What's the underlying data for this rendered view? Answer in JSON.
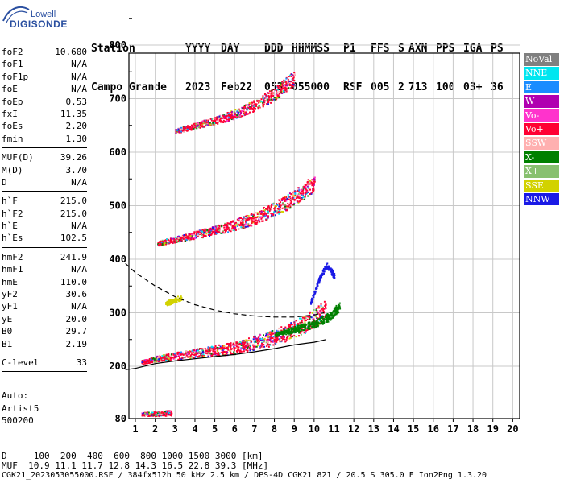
{
  "logo": {
    "top": "Lowell",
    "main": "DIGISONDE"
  },
  "header": {
    "row1": [
      "Station",
      "YYYY",
      "DAY",
      "DDD",
      "HHMMSS",
      "P1",
      "FFS",
      "S",
      "AXN",
      "PPS",
      "IGA",
      "PS"
    ],
    "row2": [
      "Campo Grande",
      "2023",
      "Feb22",
      "053",
      "055000",
      "RSF",
      "005",
      "2",
      "713",
      "100",
      "03+",
      "36"
    ]
  },
  "params": {
    "group1": [
      {
        "label": "foF2",
        "value": "10.600"
      },
      {
        "label": "foF1",
        "value": "N/A"
      },
      {
        "label": "foF1p",
        "value": "N/A"
      },
      {
        "label": "foE",
        "value": "N/A"
      },
      {
        "label": "foEp",
        "value": "0.53"
      },
      {
        "label": "fxI",
        "value": "11.35"
      },
      {
        "label": "foEs",
        "value": "2.20"
      },
      {
        "label": "fmin",
        "value": "1.30"
      }
    ],
    "group2": [
      {
        "label": "MUF(D)",
        "value": "39.26"
      },
      {
        "label": "M(D)",
        "value": "3.70"
      },
      {
        "label": "D",
        "value": "N/A"
      }
    ],
    "group3": [
      {
        "label": "h`F",
        "value": "215.0"
      },
      {
        "label": "h`F2",
        "value": "215.0"
      },
      {
        "label": "h`E",
        "value": "N/A"
      },
      {
        "label": "h`Es",
        "value": "102.5"
      }
    ],
    "group4": [
      {
        "label": "hmF2",
        "value": "241.9"
      },
      {
        "label": "hmF1",
        "value": "N/A"
      },
      {
        "label": "hmE",
        "value": "110.0"
      },
      {
        "label": "yF2",
        "value": "30.6"
      },
      {
        "label": "yF1",
        "value": "N/A"
      },
      {
        "label": "yE",
        "value": "20.0"
      },
      {
        "label": "B0",
        "value": "29.7"
      },
      {
        "label": "B1",
        "value": "2.19"
      }
    ],
    "group5": [
      {
        "label": "C-level",
        "value": "33"
      }
    ]
  },
  "auto": {
    "line1": "Auto:",
    "line2": "Artist5",
    "line3": "500200"
  },
  "legend": [
    {
      "label": "NoVal",
      "color": "#808080"
    },
    {
      "label": "NNE",
      "color": "#00e6f0"
    },
    {
      "label": "E",
      "color": "#1a8cff"
    },
    {
      "label": "W",
      "color": "#b000b0"
    },
    {
      "label": "Vo-",
      "color": "#ff33cc"
    },
    {
      "label": "Vo+",
      "color": "#ff0033"
    },
    {
      "label": "SSW",
      "color": "#ffb0b0"
    },
    {
      "label": "X-",
      "color": "#008000"
    },
    {
      "label": "X+",
      "color": "#88c070"
    },
    {
      "label": "SSE",
      "color": "#d2d200"
    },
    {
      "label": "NNW",
      "color": "#1a1ae6"
    }
  ],
  "footer": {
    "d_row": "D     100  200  400  600  800 1000 1500 3000 [km]",
    "muf_row": "MUF  10.9 11.1 11.7 12.8 14.3 16.5 22.8 39.3 [MHz]",
    "info_row": "CGK21_2023053055000.RSF / 384fx512h 50 kHz 2.5 km / DPS-4D CGK21 821 / 20.5 S 305.0 E Ion2Png 1.3.20"
  },
  "chart_data": {
    "type": "scatter",
    "title": "",
    "xlabel": "",
    "ylabel": "",
    "xlim": [
      0.5,
      20
    ],
    "ylim": [
      80,
      900
    ],
    "xticks": [
      "1",
      "2",
      "3",
      "4",
      "5",
      "6",
      "7",
      "8",
      "9",
      "10",
      "11",
      "12",
      "13",
      "14",
      "15",
      "16",
      "17",
      "18",
      "19",
      "20"
    ],
    "yticks": [
      "80",
      "200",
      "300",
      "400",
      "500",
      "600",
      "700",
      "800",
      "900"
    ],
    "grid": true,
    "legend_position": "right",
    "series": [
      {
        "color": "#ff0033",
        "traces": [
          {
            "x": [
              1.3,
              2.0,
              3.0,
              4.0,
              5.0,
              6.0,
              7.0,
              8.0,
              9.0,
              10.0,
              10.6
            ],
            "y": [
              208,
              215,
              220,
              225,
              230,
              235,
              245,
              255,
              270,
              290,
              310
            ]
          },
          {
            "x": [
              2.1,
              3.0,
              4.0,
              5.0,
              6.0,
              7.0,
              8.0,
              9.0,
              10.0
            ],
            "y": [
              430,
              438,
              446,
              455,
              465,
              478,
              495,
              515,
              545
            ]
          },
          {
            "x": [
              3.0,
              4.0,
              5.0,
              6.0,
              7.0,
              8.0,
              9.0
            ],
            "y": [
              640,
              650,
              660,
              672,
              688,
              710,
              740
            ]
          },
          {
            "x": [
              1.3,
              2.0,
              2.8
            ],
            "y": [
              92,
              92,
              94
            ]
          }
        ]
      },
      {
        "color": "#008000",
        "traces": [
          {
            "x": [
              8.0,
              9.0,
              10.0,
              10.8,
              11.2,
              11.3
            ],
            "y": [
              260,
              270,
              280,
              295,
              310,
              320
            ]
          }
        ]
      },
      {
        "color": "#1a1ae6",
        "traces": [
          {
            "x": [
              9.8,
              10.2,
              10.6,
              11.0
            ],
            "y": [
              320,
              360,
              390,
              370
            ]
          }
        ]
      },
      {
        "color": "#d2d200",
        "traces": [
          {
            "x": [
              2.5,
              3.0,
              3.3
            ],
            "y": [
              318,
              325,
              330
            ]
          }
        ]
      }
    ],
    "fitted_curves": [
      {
        "style": "dashed",
        "x": [
          0.5,
          1.0,
          2.0,
          3.0,
          4.0,
          5.0,
          6.0,
          7.0,
          8.0,
          9.0,
          10.0,
          10.5
        ],
        "y": [
          392,
          375,
          350,
          330,
          315,
          305,
          298,
          294,
          292,
          292,
          296,
          300
        ]
      },
      {
        "style": "solid",
        "x": [
          0.5,
          1.0,
          2.0,
          3.0,
          4.0,
          5.0,
          6.0,
          7.0,
          8.0,
          9.0,
          10.0,
          10.6
        ],
        "y": [
          192,
          195,
          205,
          210,
          214,
          218,
          222,
          227,
          233,
          240,
          245,
          250
        ]
      }
    ]
  }
}
